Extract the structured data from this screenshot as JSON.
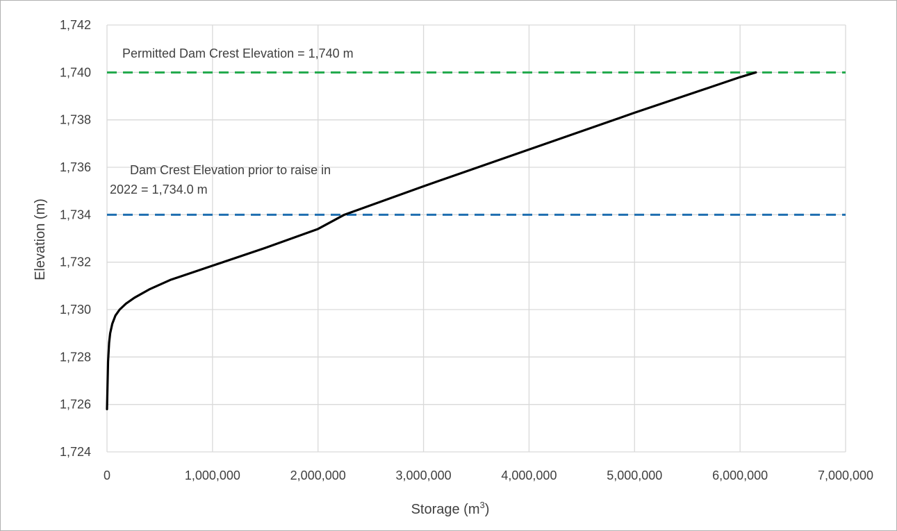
{
  "chart_data": {
    "type": "line",
    "xlabel_prefix": "Storage (m",
    "xlabel_sup": "3",
    "xlabel_suffix": ")",
    "ylabel": "Elevation (m)",
    "xlim": [
      0,
      7000000
    ],
    "ylim": [
      1724,
      1742
    ],
    "x_ticks": [
      0,
      1000000,
      2000000,
      3000000,
      4000000,
      5000000,
      6000000,
      7000000
    ],
    "x_tick_labels": [
      "0",
      "1,000,000",
      "2,000,000",
      "3,000,000",
      "4,000,000",
      "5,000,000",
      "6,000,000",
      "7,000,000"
    ],
    "y_ticks": [
      1724,
      1726,
      1728,
      1730,
      1732,
      1734,
      1736,
      1738,
      1740,
      1742
    ],
    "y_tick_labels": [
      "1,724",
      "1,726",
      "1,728",
      "1,730",
      "1,732",
      "1,734",
      "1,736",
      "1,738",
      "1,740",
      "1,742"
    ],
    "grid": true,
    "series": [
      {
        "color": "#000000",
        "x": [
          0,
          5000,
          10000,
          20000,
          30000,
          50000,
          80000,
          120000,
          180000,
          260000,
          400000,
          600000,
          1000000,
          1500000,
          2000000,
          2250000,
          3000000,
          4000000,
          5000000,
          6000000,
          6150000
        ],
        "y": [
          1725.8,
          1726.8,
          1727.8,
          1728.6,
          1729.0,
          1729.4,
          1729.75,
          1730.0,
          1730.25,
          1730.5,
          1730.85,
          1731.25,
          1731.85,
          1732.6,
          1733.4,
          1734.0,
          1735.2,
          1736.75,
          1738.3,
          1739.8,
          1740.0
        ]
      }
    ],
    "reference_lines": [
      {
        "y": 1740,
        "color": "#1fa84a",
        "label": "Permitted Dam Crest Elevation = 1,740 m"
      },
      {
        "y": 1734,
        "color": "#1f6fb0",
        "label_lines": [
          "Dam Crest Elevation prior to raise in",
          "2022 = 1,734.0 m"
        ]
      }
    ]
  }
}
